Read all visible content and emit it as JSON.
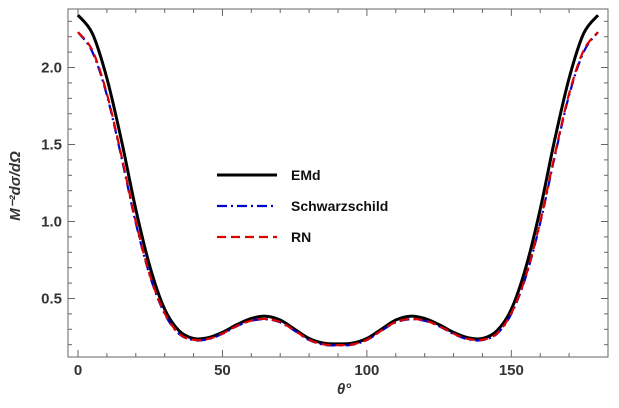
{
  "chart_data": {
    "type": "line",
    "xlabel": "θ°",
    "ylabel": "M⁻²dσ/dΩ",
    "xlim": [
      0,
      180
    ],
    "ylim": [
      0.12,
      2.38
    ],
    "x_ticks": [
      0,
      50,
      100,
      150
    ],
    "x_tick_labels": [
      "0",
      "50",
      "100",
      "150"
    ],
    "y_ticks": [
      0.5,
      1.0,
      1.5,
      2.0
    ],
    "y_tick_labels": [
      "0.5",
      "1.0",
      "1.5",
      "2.0"
    ],
    "grid": false,
    "legend_position": "center-left",
    "x": [
      0,
      5,
      10,
      15,
      20,
      25,
      30,
      35,
      40,
      45,
      50,
      55,
      60,
      65,
      70,
      75,
      80,
      85,
      90,
      95,
      100,
      105,
      110,
      115,
      120,
      125,
      130,
      135,
      140,
      145,
      150,
      155,
      160,
      165,
      170,
      175,
      180
    ],
    "series": [
      {
        "name": "EMd",
        "color": "#000000",
        "dash": "solid",
        "values": [
          2.34,
          2.22,
          1.93,
          1.53,
          1.08,
          0.7,
          0.43,
          0.29,
          0.24,
          0.245,
          0.28,
          0.33,
          0.37,
          0.385,
          0.36,
          0.3,
          0.24,
          0.21,
          0.205,
          0.21,
          0.24,
          0.3,
          0.36,
          0.385,
          0.37,
          0.33,
          0.28,
          0.245,
          0.24,
          0.29,
          0.43,
          0.7,
          1.08,
          1.53,
          1.93,
          2.22,
          2.34
        ]
      },
      {
        "name": "Schwarzschild",
        "color": "#0000cc",
        "dash": "dashdot",
        "values": [
          2.23,
          2.1,
          1.82,
          1.42,
          0.99,
          0.64,
          0.4,
          0.27,
          0.23,
          0.235,
          0.27,
          0.32,
          0.355,
          0.365,
          0.345,
          0.29,
          0.23,
          0.2,
          0.195,
          0.2,
          0.23,
          0.29,
          0.345,
          0.365,
          0.355,
          0.32,
          0.27,
          0.235,
          0.23,
          0.27,
          0.4,
          0.64,
          0.99,
          1.42,
          1.82,
          2.1,
          2.23
        ]
      },
      {
        "name": "RN",
        "color": "#dd0000",
        "dash": "dashed",
        "values": [
          2.23,
          2.11,
          1.83,
          1.43,
          1.0,
          0.645,
          0.405,
          0.272,
          0.232,
          0.237,
          0.272,
          0.322,
          0.357,
          0.367,
          0.347,
          0.292,
          0.232,
          0.202,
          0.197,
          0.202,
          0.232,
          0.292,
          0.347,
          0.367,
          0.357,
          0.322,
          0.272,
          0.237,
          0.232,
          0.272,
          0.405,
          0.645,
          1.0,
          1.43,
          1.83,
          2.11,
          2.23
        ]
      }
    ]
  }
}
